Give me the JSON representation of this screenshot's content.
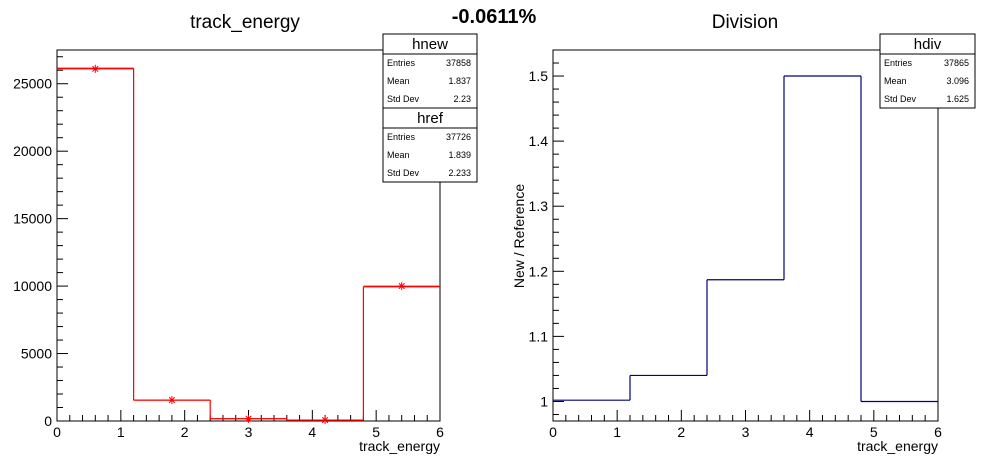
{
  "page": {
    "center_title": "-0.0611%"
  },
  "chart_data": [
    {
      "type": "histogram",
      "title": "track_energy",
      "xlabel": "track_energy",
      "ylabel": "",
      "xlim": [
        0,
        6
      ],
      "ylim": [
        0,
        27500
      ],
      "x_ticks": [
        0,
        1,
        2,
        3,
        4,
        5,
        6
      ],
      "y_ticks": [
        0,
        5000,
        10000,
        15000,
        20000,
        25000
      ],
      "bin_edges": [
        0,
        1.2,
        2.4,
        3.6,
        4.8,
        6.0
      ],
      "series": [
        {
          "name": "hnew",
          "style": "markers",
          "color": "#ff0000",
          "x": [
            0.6,
            1.8,
            3.0,
            4.2,
            5.4
          ],
          "values": [
            26100,
            1550,
            170,
            70,
            10000
          ]
        },
        {
          "name": "href",
          "style": "step",
          "color": "#ff0000",
          "values": [
            26150,
            1550,
            170,
            60,
            9950
          ]
        }
      ],
      "stats_boxes": [
        {
          "name": "hnew",
          "rows": [
            {
              "label": "Entries",
              "value": "37858"
            },
            {
              "label": "Mean",
              "value": "1.837"
            },
            {
              "label": "Std Dev",
              "value": "2.23"
            }
          ]
        },
        {
          "name": "href",
          "rows": [
            {
              "label": "Entries",
              "value": "37726"
            },
            {
              "label": "Mean",
              "value": "1.839"
            },
            {
              "label": "Std Dev",
              "value": "2.233"
            }
          ]
        }
      ]
    },
    {
      "type": "histogram",
      "title": "Division",
      "xlabel": "track_energy",
      "ylabel": "New / Reference",
      "xlim": [
        0,
        6
      ],
      "ylim": [
        0.97,
        1.54
      ],
      "x_ticks": [
        0,
        1,
        2,
        3,
        4,
        5,
        6
      ],
      "y_ticks": [
        1,
        1.1,
        1.2,
        1.3,
        1.4,
        1.5
      ],
      "bin_edges": [
        0,
        1.2,
        2.4,
        3.6,
        4.8,
        6.0
      ],
      "series": [
        {
          "name": "hdiv",
          "style": "step",
          "color": "#000080",
          "values": [
            1.002,
            1.04,
            1.187,
            1.5,
            1.0
          ]
        }
      ],
      "stats_boxes": [
        {
          "name": "hdiv",
          "rows": [
            {
              "label": "Entries",
              "value": "37865"
            },
            {
              "label": "Mean",
              "value": "3.096"
            },
            {
              "label": "Std Dev",
              "value": "1.625"
            }
          ]
        }
      ]
    }
  ]
}
